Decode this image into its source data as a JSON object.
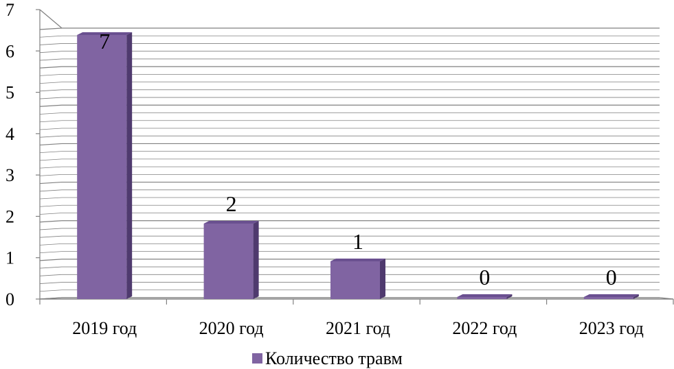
{
  "chart_data": {
    "type": "bar",
    "style": "3d-column",
    "categories": [
      "2019 год",
      "2020 год",
      "2021 год",
      "2022 год",
      "2023 год"
    ],
    "series": [
      {
        "name": "Количество травм",
        "values": [
          7,
          2,
          1,
          0,
          0
        ],
        "color": "#8064A2"
      }
    ],
    "data_labels": [
      "7",
      "2",
      "1",
      "0",
      "0"
    ],
    "yticks": [
      "0",
      "1",
      "2",
      "3",
      "4",
      "5",
      "6",
      "7"
    ],
    "ylim": [
      0,
      7
    ],
    "grid": true,
    "legend": {
      "position": "bottom",
      "label": "Количество травм"
    },
    "colors": {
      "bar_front": "#8064A2",
      "bar_side": "#4F3A6E",
      "bar_top": "#6A5090",
      "grid": "#808080",
      "axis": "#808080"
    }
  }
}
